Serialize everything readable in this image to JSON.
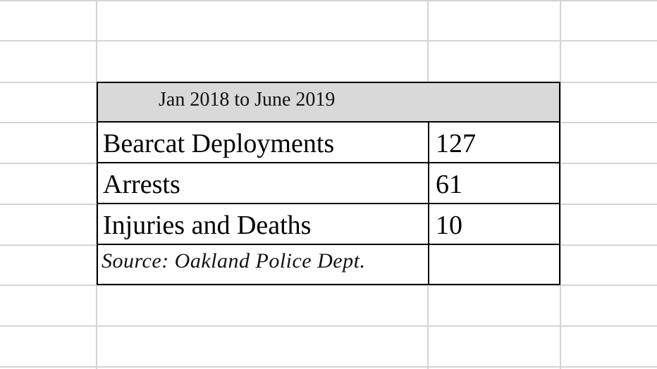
{
  "table": {
    "header": "Jan 2018 to June 2019",
    "rows": [
      {
        "label": "Bearcat Deployments",
        "value": "127"
      },
      {
        "label": "Arrests",
        "value": "61"
      },
      {
        "label": "Injuries and Deaths",
        "value": "10"
      }
    ],
    "source": "Source: Oakland Police Dept."
  },
  "colors": {
    "gridline": "#d4d4d4",
    "header_fill": "#d9d9d9",
    "border": "#000000"
  }
}
